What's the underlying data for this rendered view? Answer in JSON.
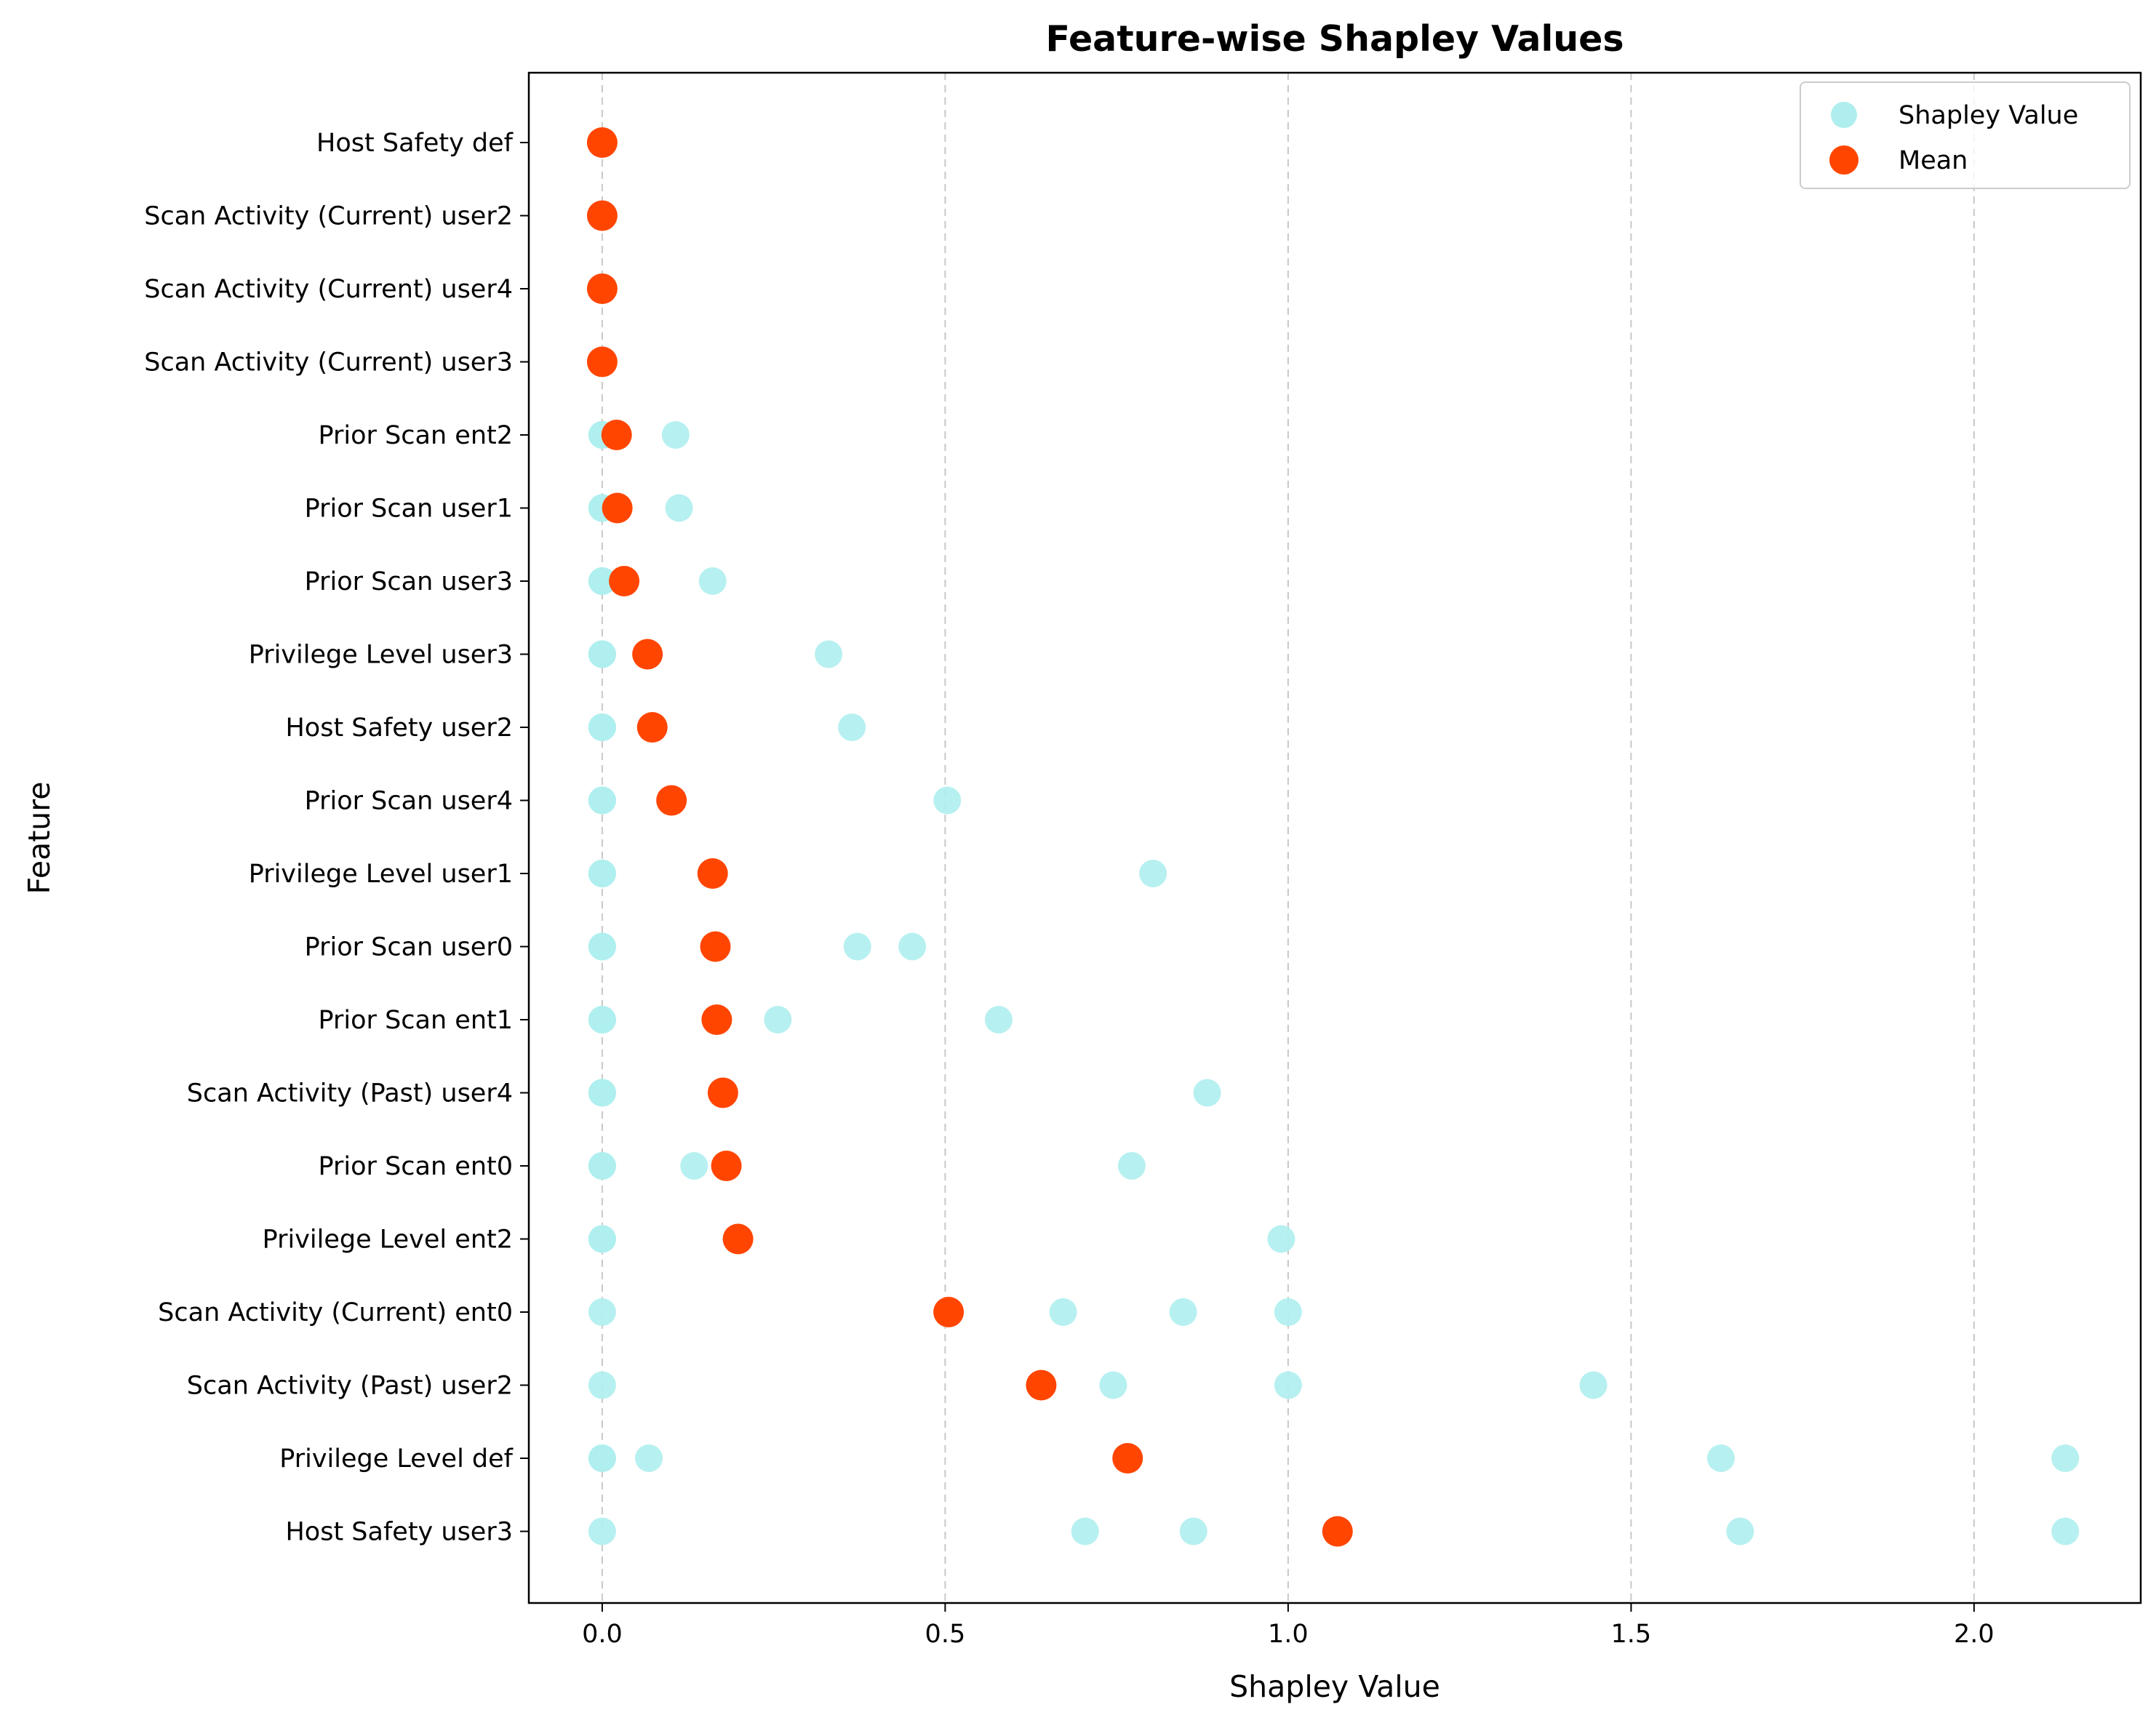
{
  "chart_data": {
    "type": "scatter",
    "title": "Feature-wise Shapley Values",
    "xlabel": "Shapley Value",
    "ylabel": "Feature",
    "xlim": [
      -0.107,
      2.243
    ],
    "xticks": [
      0.0,
      0.5,
      1.0,
      1.5,
      2.0
    ],
    "xtick_labels": [
      "0.0",
      "0.5",
      "1.0",
      "1.5",
      "2.0"
    ],
    "grid": "x-dashed",
    "legend_position": "top-right",
    "legend": [
      {
        "label": "Shapley Value",
        "color": "#AFEEEE"
      },
      {
        "label": "Mean",
        "color": "#FF4500"
      }
    ],
    "colors": {
      "shapley": "#AFEEEE",
      "mean": "#FF4500"
    },
    "features": [
      {
        "name": "Host Safety def",
        "values": [
          0,
          0,
          0,
          0,
          0
        ],
        "mean": 0.0
      },
      {
        "name": "Scan Activity (Current) user2",
        "values": [
          0,
          0,
          0,
          0,
          0
        ],
        "mean": 0.0
      },
      {
        "name": "Scan Activity (Current) user4",
        "values": [
          0,
          0,
          0,
          0,
          0
        ],
        "mean": 0.0
      },
      {
        "name": "Scan Activity (Current) user3",
        "values": [
          0,
          0,
          0,
          0,
          0
        ],
        "mean": 0.0
      },
      {
        "name": "Prior Scan ent2",
        "values": [
          0,
          0,
          0,
          0,
          0.107
        ],
        "mean": 0.021
      },
      {
        "name": "Prior Scan user1",
        "values": [
          0,
          0,
          0,
          0,
          0.112
        ],
        "mean": 0.022
      },
      {
        "name": "Prior Scan user3",
        "values": [
          0,
          0,
          0,
          0,
          0.161
        ],
        "mean": 0.032
      },
      {
        "name": "Privilege Level user3",
        "values": [
          0,
          0,
          0,
          0,
          0.33
        ],
        "mean": 0.066
      },
      {
        "name": "Host Safety user2",
        "values": [
          0,
          0,
          0,
          0,
          0.364
        ],
        "mean": 0.073
      },
      {
        "name": "Prior Scan user4",
        "values": [
          0,
          0,
          0,
          0,
          0.503
        ],
        "mean": 0.101
      },
      {
        "name": "Privilege Level user1",
        "values": [
          0,
          0,
          0,
          0,
          0.803
        ],
        "mean": 0.161
      },
      {
        "name": "Prior Scan user0",
        "values": [
          0,
          0,
          0,
          0.372,
          0.452
        ],
        "mean": 0.165
      },
      {
        "name": "Prior Scan ent1",
        "values": [
          0,
          0,
          0,
          0.256,
          0.578
        ],
        "mean": 0.167
      },
      {
        "name": "Scan Activity (Past) user4",
        "values": [
          0,
          0,
          0,
          0,
          0.882
        ],
        "mean": 0.176
      },
      {
        "name": "Prior Scan ent0",
        "values": [
          0,
          0,
          0,
          0.134,
          0.772
        ],
        "mean": 0.181
      },
      {
        "name": "Privilege Level ent2",
        "values": [
          0,
          0,
          0,
          0,
          0.99
        ],
        "mean": 0.198
      },
      {
        "name": "Scan Activity (Current) ent0",
        "values": [
          0,
          0.672,
          0.847,
          1.0
        ],
        "mean": 0.505
      },
      {
        "name": "Scan Activity (Past) user2",
        "values": [
          0,
          0.745,
          1.0,
          1.445
        ],
        "mean": 0.64
      },
      {
        "name": "Privilege Level def",
        "values": [
          0,
          0,
          0.068,
          1.631,
          2.133
        ],
        "mean": 0.766
      },
      {
        "name": "Host Safety user3",
        "values": [
          0,
          0.704,
          0.862,
          1.659,
          2.133
        ],
        "mean": 1.072
      }
    ]
  }
}
